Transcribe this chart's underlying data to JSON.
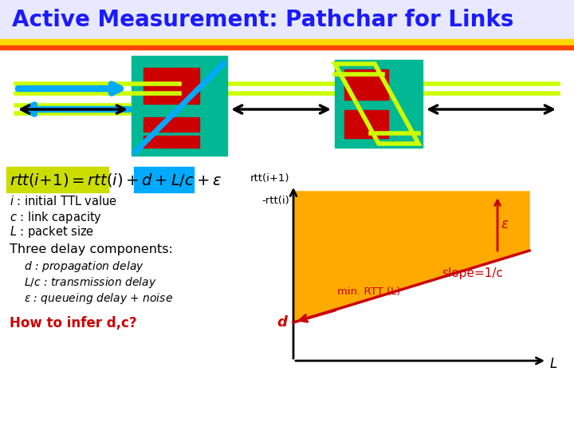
{
  "title": "Active Measurement: Pathchar for Links",
  "title_color": "#1a1aff",
  "title_fontsize": 20,
  "bg_color": "#ffffff",
  "router_color": "#00b894",
  "red_box_color": "#cc0000",
  "yellow_line_color": "#ccff00",
  "cyan_color": "#00aaff",
  "formula_bg_yellow": "#ccdd00",
  "formula_bg_cyan": "#00aaff",
  "plot_fill_color": "#ffaa00",
  "plot_line_color": "#cc0000",
  "red_text_color": "#cc0000",
  "ylabel_top": "rtt(i+1)",
  "ylabel_bot": "-rtt(i)",
  "xlabel": "L",
  "min_rtt_label": "min. RTT (L)",
  "slope_label": "slope=1/c",
  "eps_label": "ε",
  "d_label": "d"
}
